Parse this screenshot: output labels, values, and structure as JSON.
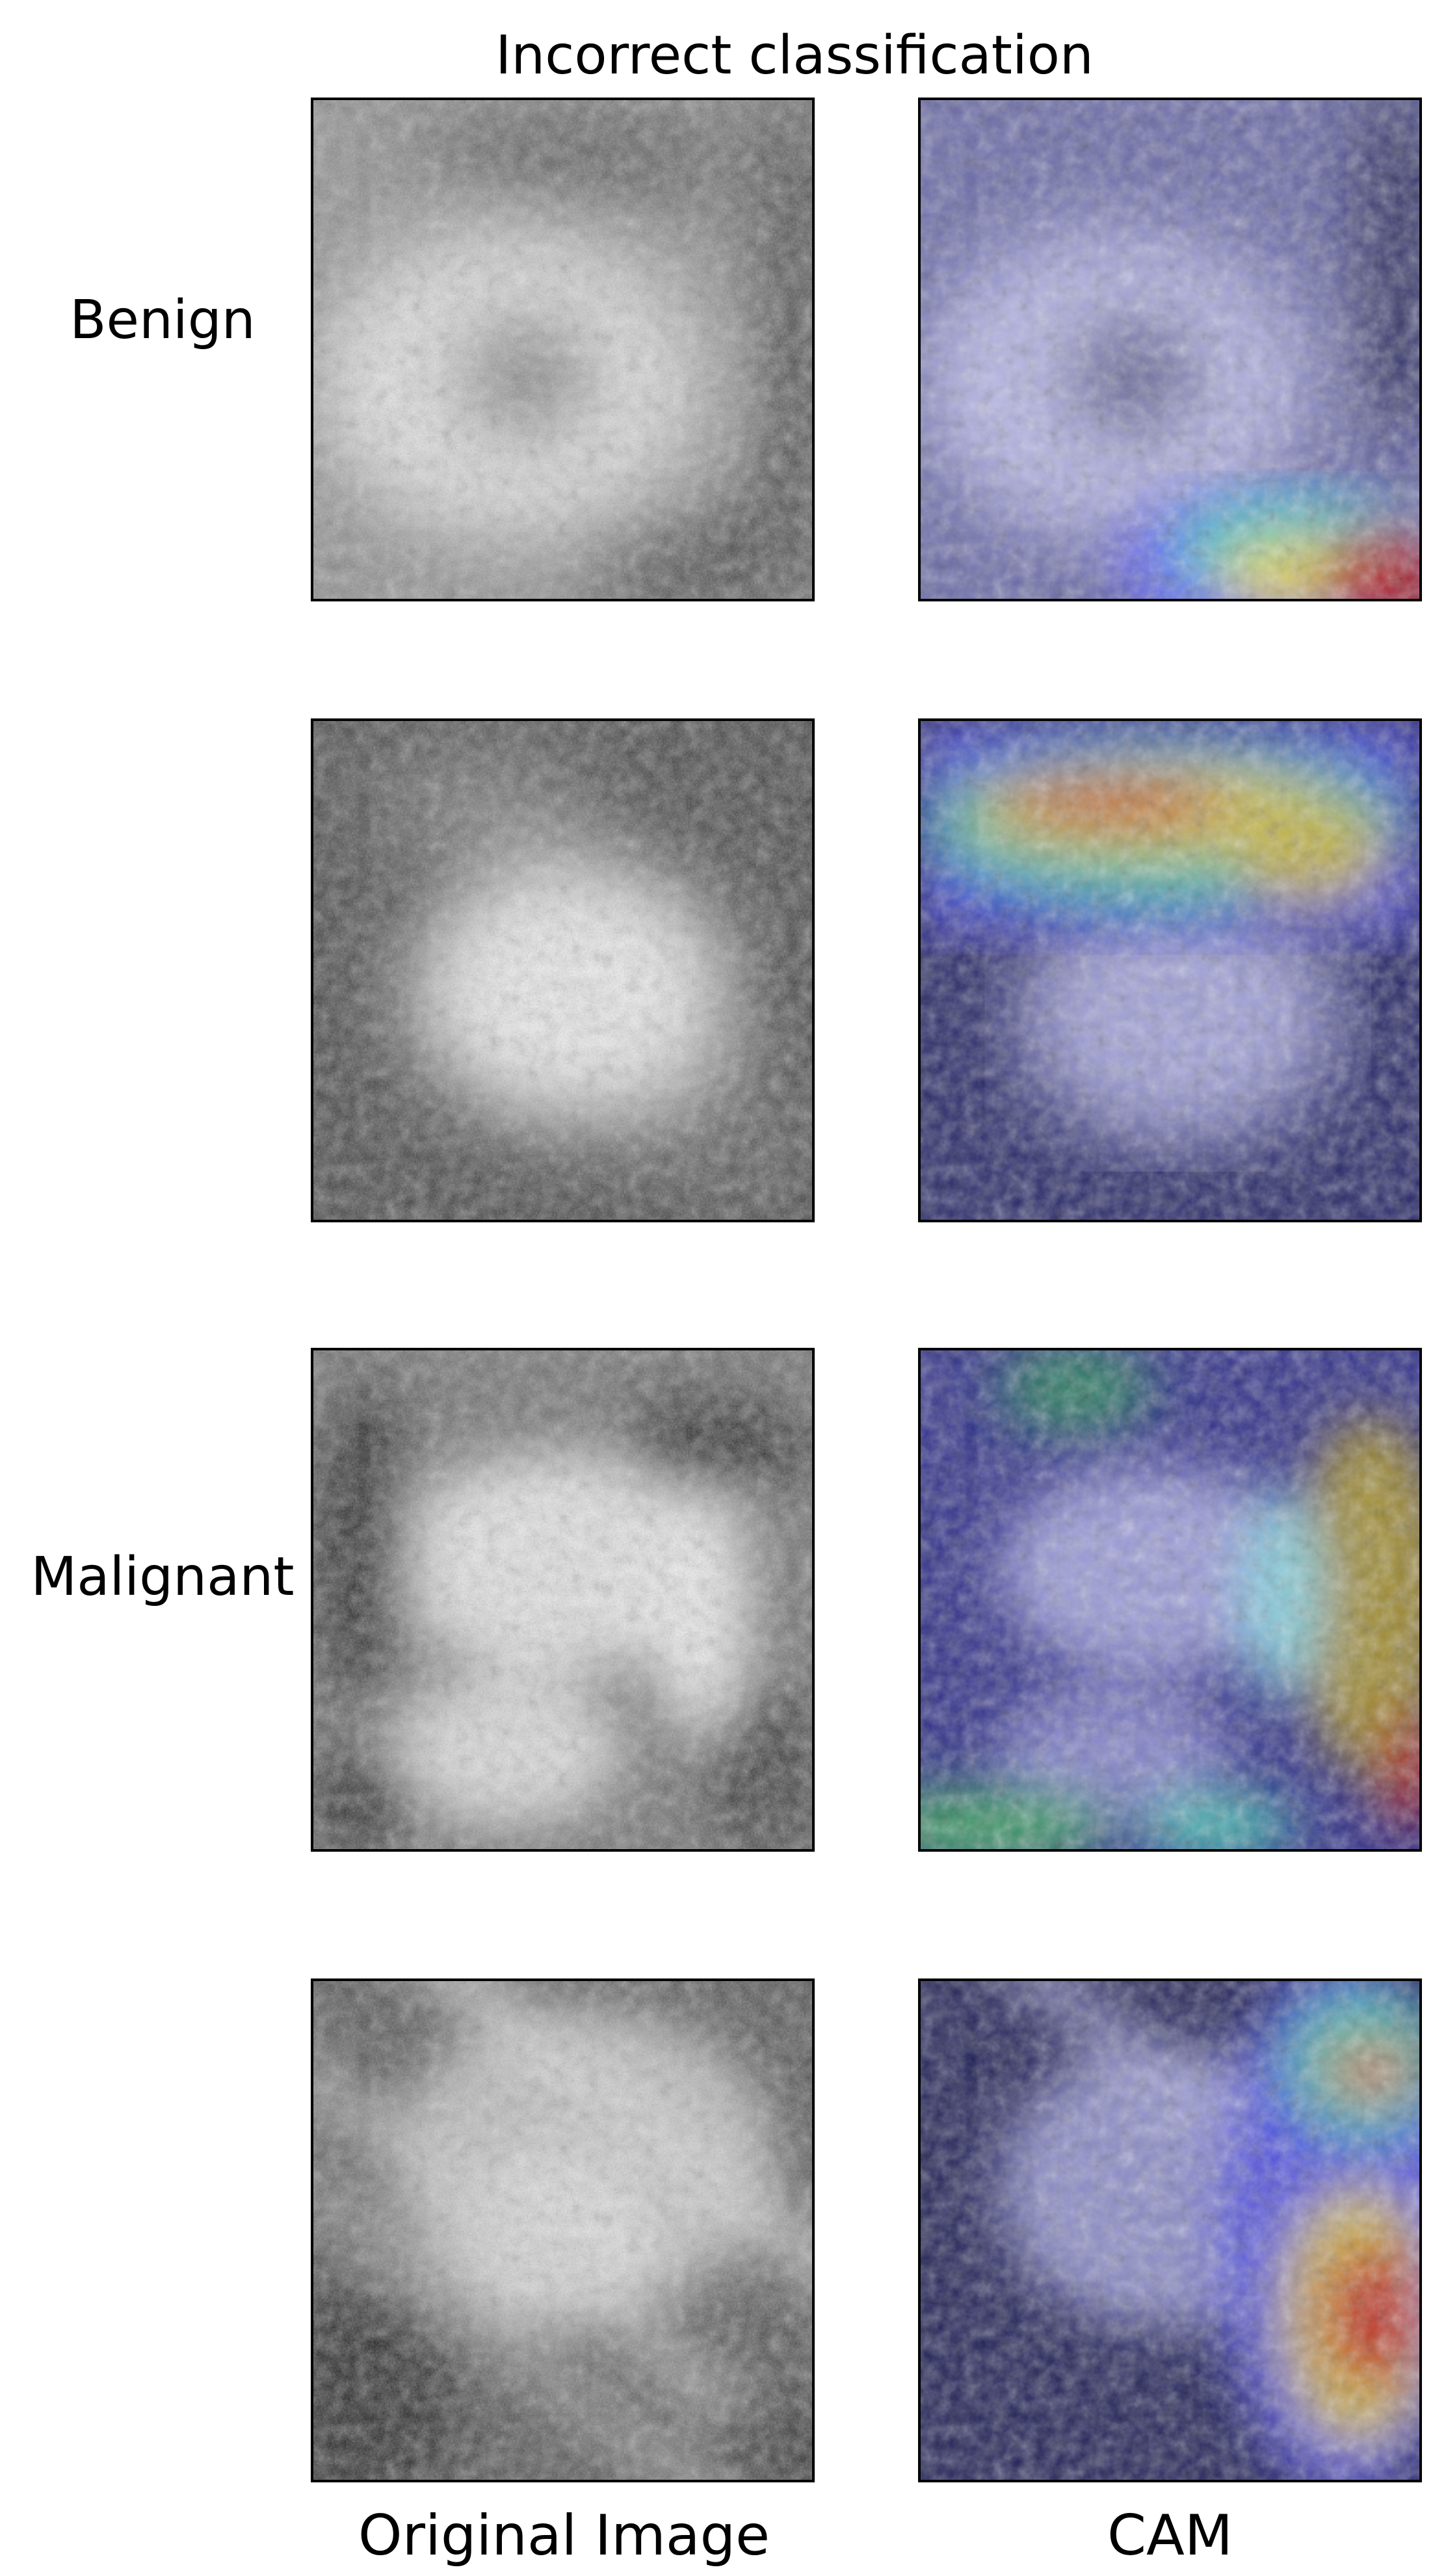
{
  "figure": {
    "title": "Incorrect classification",
    "row_labels": [
      "Benign",
      "Malignant"
    ],
    "column_labels": [
      "Original Image",
      "CAM"
    ]
  },
  "panels": [
    {
      "row": 1,
      "kind": "original",
      "content": "grayscale mammogram patch, roughly circular bright mass with dark center"
    },
    {
      "row": 1,
      "kind": "cam",
      "content": "CAM heatmap overlay, activation concentrated bottom-right"
    },
    {
      "row": 2,
      "kind": "original",
      "content": "grayscale mammogram patch, large bright oval mass"
    },
    {
      "row": 2,
      "kind": "cam",
      "content": "CAM heatmap overlay, strong activation band across top"
    },
    {
      "row": 3,
      "kind": "original",
      "content": "grayscale mammogram patch, mottled bright tissue"
    },
    {
      "row": 3,
      "kind": "cam",
      "content": "CAM heatmap overlay, activation along right edge and top"
    },
    {
      "row": 4,
      "kind": "original",
      "content": "grayscale mammogram patch, diagonal bright streaks"
    },
    {
      "row": 4,
      "kind": "cam",
      "content": "CAM heatmap overlay, activation lower right"
    }
  ],
  "colors": {
    "background": "#ffffff",
    "border": "#000000",
    "cam_base": "#1a1a66",
    "cam_hot": "#cc1a1a"
  }
}
